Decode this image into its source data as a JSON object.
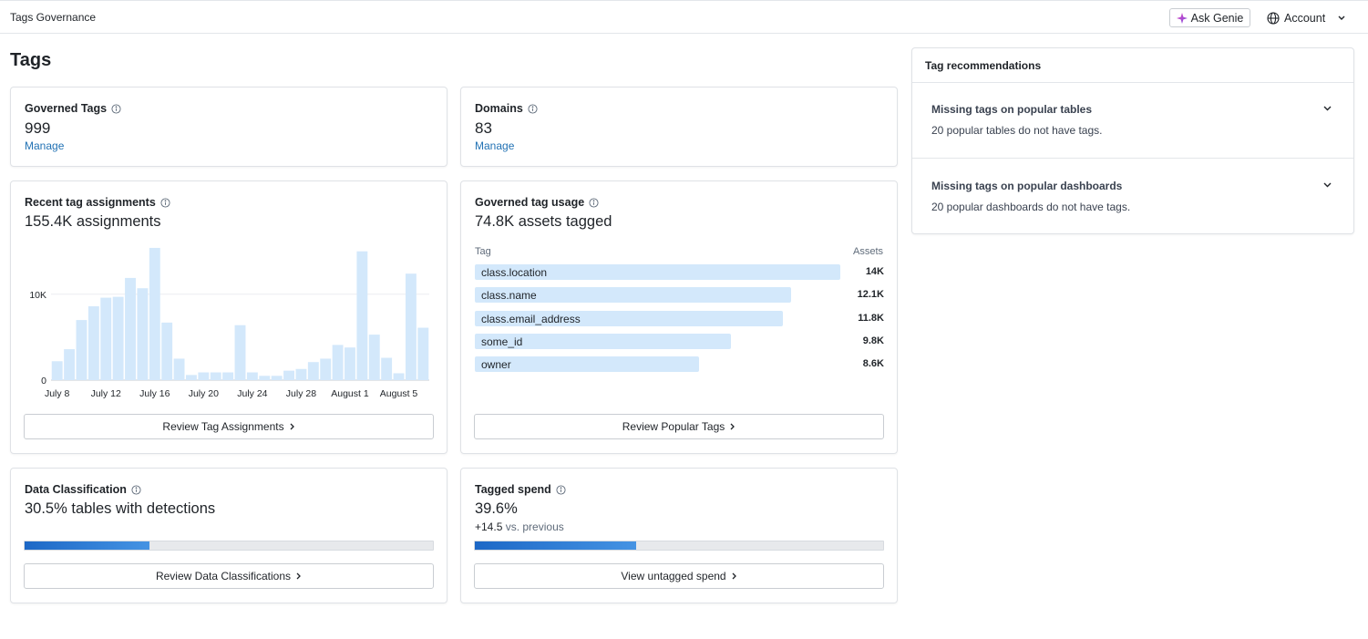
{
  "header": {
    "app_title": "Tags Governance",
    "genie_label": "Ask Genie",
    "account_label": "Account"
  },
  "page": {
    "title": "Tags"
  },
  "governed_tags": {
    "title": "Governed Tags",
    "value": "999",
    "link": "Manage"
  },
  "domains": {
    "title": "Domains",
    "value": "83",
    "link": "Manage"
  },
  "recent_assignments": {
    "title": "Recent tag assignments",
    "value": "155.4K assignments",
    "button": "Review Tag Assignments",
    "chart_data": {
      "type": "bar",
      "title": "",
      "xlabel": "",
      "ylabel": "",
      "ylim": [
        0,
        15500
      ],
      "yticks": [
        0,
        10000
      ],
      "ytick_labels": [
        "0",
        "10K"
      ],
      "xtick_labels": [
        "July 8",
        "July 12",
        "July 16",
        "July 20",
        "July 24",
        "July 28",
        "August 1",
        "August 5"
      ],
      "xtick_indices": [
        0,
        4,
        8,
        12,
        16,
        20,
        24,
        28
      ],
      "bar_color": "#d3e8fb",
      "grid": true,
      "values": [
        2200,
        3600,
        7000,
        8600,
        9600,
        9700,
        11900,
        10700,
        15400,
        6700,
        2500,
        600,
        900,
        900,
        900,
        6400,
        900,
        500,
        500,
        1100,
        1300,
        2100,
        2500,
        4100,
        3800,
        15000,
        5300,
        2600,
        800,
        12400,
        6100
      ]
    }
  },
  "governed_usage": {
    "title": "Governed tag usage",
    "value": "74.8K assets tagged",
    "col_tag": "Tag",
    "col_assets": "Assets",
    "button": "Review Popular Tags",
    "bar_color": "#d3e8fb",
    "max": 15000,
    "rows": [
      {
        "tag": "class.location",
        "label": "14K",
        "value": 14000
      },
      {
        "tag": "class.name",
        "label": "12.1K",
        "value": 12100
      },
      {
        "tag": "class.email_address",
        "label": "11.8K",
        "value": 11800
      },
      {
        "tag": "some_id",
        "label": "9.8K",
        "value": 9800
      },
      {
        "tag": "owner",
        "label": "8.6K",
        "value": 8600
      }
    ]
  },
  "data_classification": {
    "title": "Data Classification",
    "value": "30.5% tables with detections",
    "progress": 0.305,
    "button": "Review Data Classifications"
  },
  "tagged_spend": {
    "title": "Tagged spend",
    "value": "39.6%",
    "delta": "+14.5",
    "delta_suffix": "vs. previous",
    "progress": 0.396,
    "button": "View untagged spend"
  },
  "recommendations": {
    "title": "Tag recommendations",
    "items": [
      {
        "title": "Missing tags on popular tables",
        "desc": "20 popular tables do not have tags."
      },
      {
        "title": "Missing tags on popular dashboards",
        "desc": "20 popular dashboards do not have tags."
      }
    ]
  },
  "colors": {
    "accent": "#2272b4",
    "progress_fill": "#1d68c6",
    "genie": "#c13fd9"
  }
}
